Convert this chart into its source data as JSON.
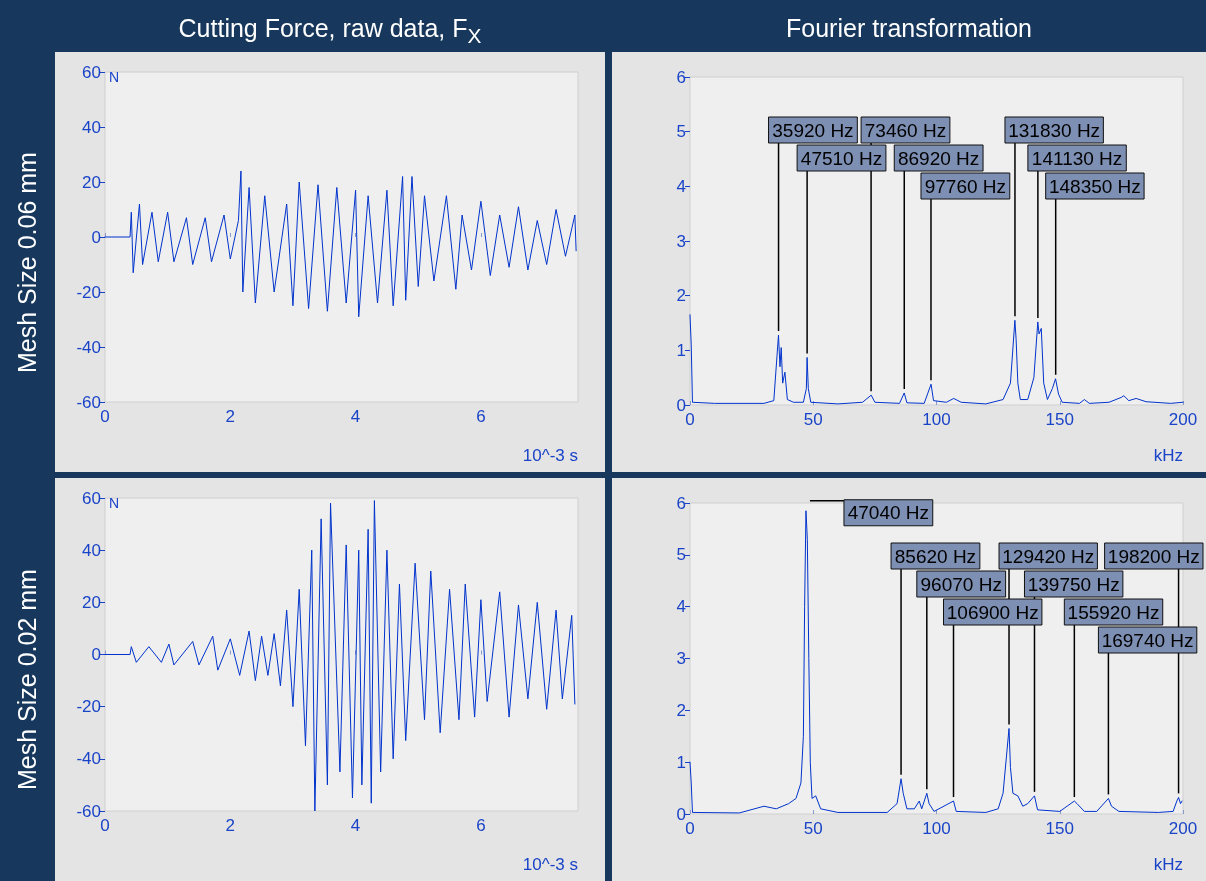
{
  "chart_data": [
    {
      "type": "line",
      "title": "Cutting Force, raw data, F$_{X}$",
      "annotations": [
        "Mesh Size 0.06 mm"
      ],
      "ylabel": "N",
      "xlabel": "10^-3 s",
      "xlim": [
        0,
        7.55
      ],
      "xticks": [
        0,
        2,
        4,
        6
      ],
      "ylim": [
        -60,
        60
      ],
      "yticks": [
        -60,
        -40,
        -20,
        0,
        20,
        40,
        60
      ],
      "grid": false,
      "x": [
        0,
        0.4,
        0.42,
        0.45,
        0.55,
        0.6,
        0.75,
        0.85,
        1.0,
        1.1,
        1.3,
        1.4,
        1.6,
        1.7,
        1.9,
        2.0,
        2.13,
        2.17,
        2.2,
        2.3,
        2.4,
        2.55,
        2.7,
        2.9,
        3.0,
        3.1,
        3.25,
        3.4,
        3.55,
        3.7,
        3.85,
        4.0,
        4.05,
        4.2,
        4.35,
        4.5,
        4.6,
        4.75,
        4.8,
        4.9,
        5.0,
        5.1,
        5.25,
        5.45,
        5.6,
        5.7,
        5.85,
        6.0,
        6.15,
        6.3,
        6.45,
        6.6,
        6.75,
        6.9,
        7.05,
        7.2,
        7.35,
        7.5,
        7.52
      ],
      "series": [
        {
          "color": "#0033cc",
          "values": [
            0,
            0,
            9,
            -13,
            12,
            -10,
            9,
            -9,
            9,
            -9,
            7,
            -10,
            7,
            -9,
            8,
            -8,
            6,
            24,
            -20,
            18,
            -24,
            15,
            -20,
            12,
            -25,
            20,
            -26,
            19,
            -27,
            18,
            -24,
            17,
            -29,
            15,
            -24,
            17,
            -25,
            22,
            -23,
            22,
            -18,
            15,
            -16,
            15,
            -19,
            8,
            -12,
            13,
            -14,
            8,
            -11,
            11,
            -12,
            6,
            -10,
            10,
            -7,
            8,
            -5
          ]
        }
      ]
    },
    {
      "type": "line",
      "title": "Fourier transformation",
      "xlabel": "kHz",
      "xlim": [
        0,
        200
      ],
      "xticks": [
        0,
        50,
        100,
        150,
        200
      ],
      "ylim": [
        0,
        6
      ],
      "yticks": [
        0,
        1,
        2,
        3,
        4,
        5,
        6
      ],
      "grid": false,
      "x": [
        0,
        0.5,
        1,
        10,
        30,
        34,
        35.3,
        35.9,
        36.5,
        37,
        37.6,
        38.5,
        39.5,
        42,
        46,
        47.2,
        47.5,
        48,
        49,
        60,
        70,
        73.5,
        75,
        85,
        86.9,
        88,
        95,
        97.8,
        98.8,
        104,
        107,
        110,
        120,
        127,
        130,
        131.8,
        132.3,
        133,
        134,
        137,
        139.5,
        141.1,
        141.6,
        142.5,
        143.5,
        145,
        147,
        148.3,
        149.5,
        151,
        158,
        160,
        162,
        170,
        175,
        176,
        178,
        181,
        185,
        195,
        200
      ],
      "series": [
        {
          "color": "#0033cc",
          "values": [
            1.65,
            1.1,
            0.05,
            0.03,
            0.03,
            0.08,
            0.9,
            1.28,
            0.7,
            1.05,
            0.4,
            0.6,
            0.1,
            0.05,
            0.05,
            0.3,
            0.87,
            0.3,
            0.05,
            0.02,
            0.05,
            0.18,
            0.05,
            0.03,
            0.22,
            0.04,
            0.03,
            0.38,
            0.08,
            0.05,
            0.12,
            0.05,
            0.02,
            0.1,
            0.4,
            1.55,
            1.2,
            0.4,
            0.1,
            0.1,
            0.5,
            1.52,
            1.3,
            1.4,
            0.4,
            0.1,
            0.3,
            0.48,
            0.2,
            0.05,
            0.03,
            0.1,
            0.03,
            0.05,
            0.14,
            0.17,
            0.08,
            0.12,
            0.06,
            0.03,
            0.05
          ]
        }
      ],
      "annotations": [
        {
          "text": "35920 Hz",
          "x": 35.92,
          "y": 1.28
        },
        {
          "text": "47510 Hz",
          "x": 47.51,
          "y": 0.87
        },
        {
          "text": "73460 Hz",
          "x": 73.46,
          "y": 0.18
        },
        {
          "text": "86920 Hz",
          "x": 86.92,
          "y": 0.22
        },
        {
          "text": "97760 Hz",
          "x": 97.76,
          "y": 0.38
        },
        {
          "text": "131830 Hz",
          "x": 131.83,
          "y": 1.55
        },
        {
          "text": "141130 Hz",
          "x": 141.13,
          "y": 1.52
        },
        {
          "text": "148350 Hz",
          "x": 148.35,
          "y": 0.48
        }
      ]
    },
    {
      "type": "line",
      "annotations": [
        "Mesh Size 0.02 mm"
      ],
      "ylabel": "N",
      "xlabel": "10^-3 s",
      "xlim": [
        0,
        7.55
      ],
      "xticks": [
        0,
        2,
        4,
        6
      ],
      "ylim": [
        -60,
        60
      ],
      "yticks": [
        -60,
        -40,
        -20,
        0,
        20,
        40,
        60
      ],
      "grid": false,
      "x": [
        0,
        0.4,
        0.42,
        0.5,
        0.7,
        0.9,
        1.02,
        1.1,
        1.4,
        1.5,
        1.72,
        1.8,
        2.0,
        2.15,
        2.3,
        2.4,
        2.5,
        2.6,
        2.7,
        2.8,
        2.9,
        3.0,
        3.1,
        3.2,
        3.3,
        3.35,
        3.45,
        3.55,
        3.6,
        3.75,
        3.85,
        3.95,
        4.05,
        4.1,
        4.2,
        4.25,
        4.3,
        4.4,
        4.5,
        4.6,
        4.7,
        4.8,
        4.95,
        5.1,
        5.2,
        5.35,
        5.5,
        5.65,
        5.75,
        5.9,
        6.0,
        6.1,
        6.3,
        6.45,
        6.6,
        6.75,
        6.9,
        7.05,
        7.2,
        7.3,
        7.45,
        7.5
      ],
      "series": [
        {
          "color": "#0033cc",
          "values": [
            0,
            0,
            3,
            -3,
            3,
            -3,
            4,
            -4,
            5,
            -4,
            7,
            -6,
            6,
            -8,
            9,
            -10,
            7,
            -8,
            8,
            -12,
            17,
            -20,
            25,
            -35,
            40,
            -60,
            52,
            -50,
            58,
            -45,
            42,
            -55,
            40,
            -50,
            48,
            -57,
            59,
            -45,
            40,
            -40,
            27,
            -33,
            35,
            -25,
            32,
            -30,
            25,
            -25,
            27,
            -24,
            21,
            -18,
            24,
            -24,
            19,
            -17,
            20,
            -21,
            17,
            -17,
            15,
            -19
          ]
        }
      ]
    },
    {
      "type": "line",
      "xlabel": "kHz",
      "xlim": [
        0,
        200
      ],
      "xticks": [
        0,
        50,
        100,
        150,
        200
      ],
      "ylim": [
        0,
        6
      ],
      "yticks": [
        0,
        1,
        2,
        3,
        4,
        5,
        6
      ],
      "grid": false,
      "x": [
        0,
        0.5,
        1,
        20,
        30,
        35,
        40,
        43,
        45,
        46,
        46.5,
        47.04,
        47.6,
        48.2,
        48.8,
        49.5,
        51,
        53,
        60,
        80,
        84,
        85.62,
        86.5,
        88,
        91,
        93,
        94,
        96.07,
        97,
        99,
        106.9,
        108,
        120,
        125,
        127,
        129.42,
        130,
        131,
        133,
        135,
        137,
        139.75,
        141,
        150,
        155.92,
        157,
        160,
        165,
        169.74,
        171,
        174,
        190,
        196,
        197.5,
        198.2,
        199,
        199.6
      ],
      "series": [
        {
          "color": "#0033cc",
          "values": [
            1.0,
            0.6,
            0.03,
            0.02,
            0.15,
            0.1,
            0.2,
            0.3,
            0.6,
            1.5,
            4,
            5.85,
            5.3,
            3,
            1,
            0.3,
            0.35,
            0.1,
            0.03,
            0.03,
            0.2,
            0.68,
            0.4,
            0.1,
            0.1,
            0.25,
            0.1,
            0.4,
            0.2,
            0.05,
            0.25,
            0.05,
            0.03,
            0.1,
            0.4,
            1.65,
            0.9,
            0.4,
            0.35,
            0.15,
            0.2,
            0.35,
            0.08,
            0.05,
            0.25,
            0.2,
            0.05,
            0.05,
            0.3,
            0.15,
            0.05,
            0.03,
            0.05,
            0.25,
            0.32,
            0.2,
            0.25
          ]
        }
      ],
      "annotations": [
        {
          "text": "47040 Hz",
          "x": 47.04,
          "y": 5.85
        },
        {
          "text": "85620 Hz",
          "x": 85.62,
          "y": 0.68
        },
        {
          "text": "96070 Hz",
          "x": 96.07,
          "y": 0.4
        },
        {
          "text": "106900 Hz",
          "x": 106.9,
          "y": 0.25
        },
        {
          "text": "129420 Hz",
          "x": 129.42,
          "y": 1.65
        },
        {
          "text": "139750 Hz",
          "x": 139.75,
          "y": 0.35
        },
        {
          "text": "155920 Hz",
          "x": 155.92,
          "y": 0.25
        },
        {
          "text": "169740 Hz",
          "x": 169.74,
          "y": 0.3
        },
        {
          "text": "198200 Hz",
          "x": 198.2,
          "y": 0.32
        }
      ]
    }
  ]
}
